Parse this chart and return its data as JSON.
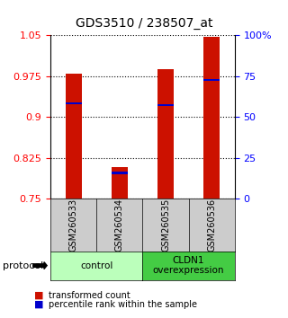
{
  "title": "GDS3510 / 238507_at",
  "samples": [
    "GSM260533",
    "GSM260534",
    "GSM260535",
    "GSM260536"
  ],
  "red_bar_tops": [
    0.979,
    0.808,
    0.987,
    1.047
  ],
  "red_bar_bottom": 0.75,
  "blue_marker_values": [
    0.925,
    0.797,
    0.922,
    0.968
  ],
  "ylim": [
    0.75,
    1.05
  ],
  "yticks_left": [
    0.75,
    0.825,
    0.9,
    0.975,
    1.05
  ],
  "right_ylim_labels": [
    "0",
    "25",
    "50",
    "75",
    "100%"
  ],
  "groups": [
    {
      "label": "control",
      "samples": [
        0,
        1
      ],
      "color": "#bbffbb"
    },
    {
      "label": "CLDN1\noverexpression",
      "samples": [
        2,
        3
      ],
      "color": "#44cc44"
    }
  ],
  "bar_width": 0.35,
  "bar_color": "#cc1100",
  "blue_color": "#0000cc",
  "protocol_label": "protocol",
  "legend_red": "transformed count",
  "legend_blue": "percentile rank within the sample",
  "bg_color": "#cccccc",
  "plot_bg": "#ffffff",
  "title_fontsize": 10,
  "tick_fontsize": 8
}
